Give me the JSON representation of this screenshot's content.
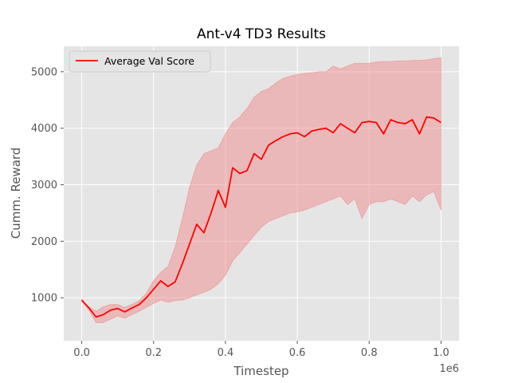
{
  "chart_data": {
    "type": "line",
    "title": "Ant-v4 TD3 Results",
    "xlabel": "Timestep",
    "ylabel": "Cumm. Reward",
    "x_offset_label": "1e6",
    "xlim": [
      -0.05,
      1.05
    ],
    "ylim": [
      240,
      5450
    ],
    "x_ticks": [
      0.0,
      0.2,
      0.4,
      0.6,
      0.8,
      1.0
    ],
    "x_tick_labels": [
      "0.0",
      "0.2",
      "0.4",
      "0.6",
      "0.8",
      "1.0"
    ],
    "y_ticks": [
      1000,
      2000,
      3000,
      4000,
      5000
    ],
    "y_tick_labels": [
      "1000",
      "2000",
      "3000",
      "4000",
      "5000"
    ],
    "grid": true,
    "legend_position": "upper-left",
    "colors": {
      "line": "#ff0000",
      "band": "#f08080",
      "background": "#e5e5e5",
      "grid": "#ffffff"
    },
    "series": [
      {
        "name": "Average Val Score",
        "x": [
          0.0,
          0.02,
          0.04,
          0.06,
          0.08,
          0.1,
          0.12,
          0.14,
          0.16,
          0.18,
          0.2,
          0.22,
          0.24,
          0.26,
          0.28,
          0.3,
          0.32,
          0.34,
          0.36,
          0.38,
          0.4,
          0.42,
          0.44,
          0.46,
          0.48,
          0.5,
          0.52,
          0.54,
          0.56,
          0.58,
          0.6,
          0.62,
          0.64,
          0.66,
          0.68,
          0.7,
          0.72,
          0.74,
          0.76,
          0.78,
          0.8,
          0.82,
          0.84,
          0.86,
          0.88,
          0.9,
          0.92,
          0.94,
          0.96,
          0.98,
          1.0
        ],
        "values": [
          960,
          820,
          660,
          700,
          780,
          810,
          750,
          820,
          880,
          1000,
          1150,
          1300,
          1200,
          1280,
          1600,
          1950,
          2300,
          2150,
          2500,
          2900,
          2600,
          3300,
          3200,
          3250,
          3550,
          3450,
          3700,
          3780,
          3850,
          3900,
          3920,
          3850,
          3950,
          3980,
          4000,
          3920,
          4080,
          4000,
          3920,
          4100,
          4120,
          4100,
          3900,
          4150,
          4100,
          4080,
          4150,
          3900,
          4200,
          4180,
          4100
        ],
        "upper": [
          950,
          840,
          760,
          840,
          880,
          880,
          830,
          880,
          950,
          1080,
          1300,
          1450,
          1550,
          1900,
          2400,
          2950,
          3350,
          3550,
          3600,
          3650,
          3900,
          4100,
          4200,
          4350,
          4550,
          4650,
          4700,
          4800,
          4880,
          4920,
          4950,
          4970,
          4980,
          5000,
          5000,
          5100,
          5050,
          5100,
          5150,
          5150,
          5150,
          5170,
          5180,
          5180,
          5190,
          5190,
          5200,
          5200,
          5210,
          5230,
          5250
        ],
        "lower": [
          940,
          780,
          560,
          560,
          620,
          680,
          640,
          700,
          760,
          830,
          900,
          960,
          920,
          950,
          960,
          1000,
          1050,
          1100,
          1150,
          1250,
          1400,
          1650,
          1800,
          1950,
          2100,
          2250,
          2350,
          2400,
          2450,
          2500,
          2520,
          2550,
          2600,
          2650,
          2700,
          2750,
          2800,
          2650,
          2750,
          2400,
          2650,
          2700,
          2700,
          2750,
          2700,
          2650,
          2800,
          2700,
          2820,
          2880,
          2550
        ]
      }
    ]
  }
}
